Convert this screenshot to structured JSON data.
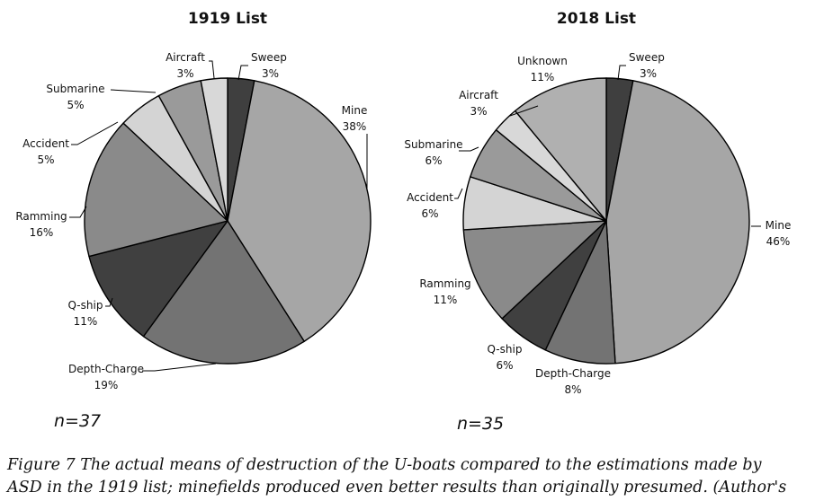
{
  "chart_data": [
    {
      "type": "pie",
      "title": "1919 List",
      "n_label": "n=37",
      "categories": [
        "Sweep",
        "Mine",
        "Depth-Charge",
        "Q-ship",
        "Ramming",
        "Accident",
        "Submarine",
        "Aircraft"
      ],
      "values": [
        3,
        38,
        19,
        11,
        16,
        5,
        5,
        3
      ],
      "value_labels": [
        "3%",
        "38%",
        "19%",
        "11%",
        "16%",
        "5%",
        "5%",
        "3%"
      ],
      "colors": [
        "#3f3f3f",
        "#a6a6a6",
        "#737373",
        "#404040",
        "#8a8a8a",
        "#d4d4d4",
        "#9a9a9a",
        "#d8d8d8"
      ],
      "start_angle_deg": 0,
      "direction": "clockwise"
    },
    {
      "type": "pie",
      "title": "2018 List",
      "n_label": "n=35",
      "categories": [
        "Sweep",
        "Mine",
        "Depth-Charge",
        "Q-ship",
        "Ramming",
        "Accident",
        "Submarine",
        "Aircraft",
        "Unknown"
      ],
      "values": [
        3,
        46,
        8,
        6,
        11,
        6,
        6,
        3,
        11
      ],
      "value_labels": [
        "3%",
        "46%",
        "8%",
        "6%",
        "11%",
        "6%",
        "6%",
        "3%",
        "11%"
      ],
      "colors": [
        "#3f3f3f",
        "#a6a6a6",
        "#737373",
        "#404040",
        "#8a8a8a",
        "#d4d4d4",
        "#9a9a9a",
        "#d8d8d8",
        "#b0b0b0"
      ],
      "start_angle_deg": 0,
      "direction": "clockwise"
    }
  ],
  "caption": {
    "line1": "Figure 7    The actual means of destruction of the U-boats compared to the estimations made by",
    "line2": "ASD in the 1919 list; minefields produced even better results than originally presumed. (Author's"
  }
}
